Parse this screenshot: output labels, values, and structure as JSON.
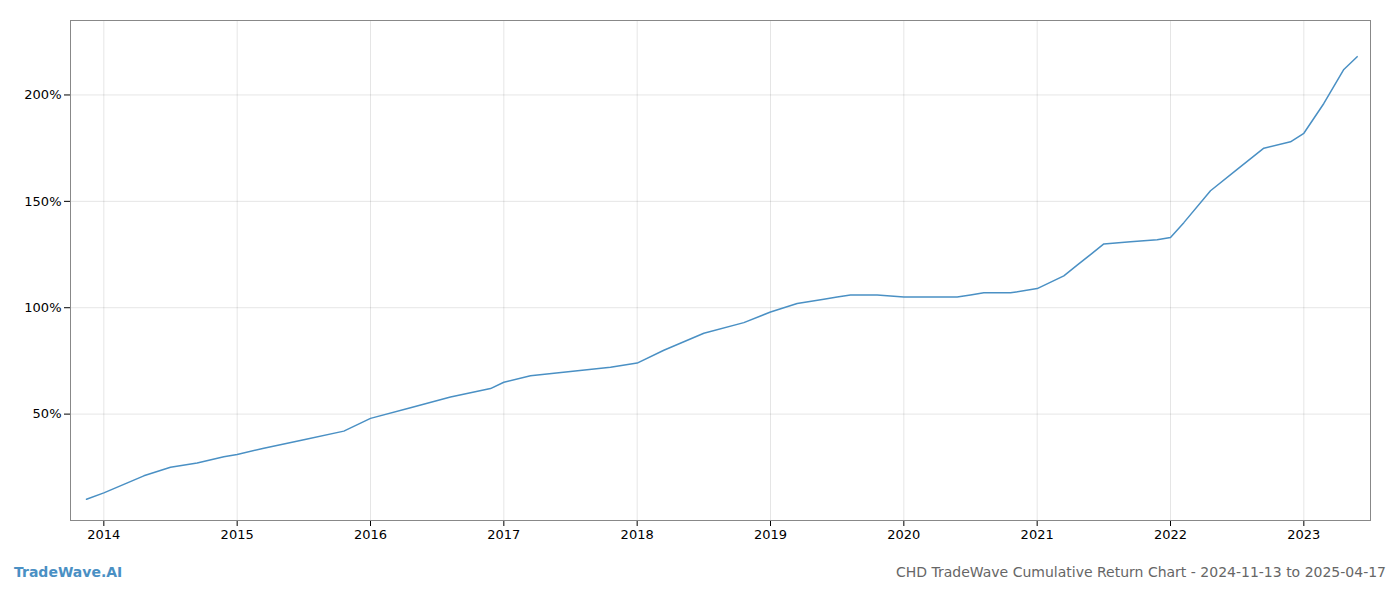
{
  "chart_data": {
    "type": "line",
    "title": "CHD TradeWave Cumulative Return Chart - 2024-11-13 to 2025-04-17",
    "annotations": [
      "TradeWave.AI"
    ],
    "color": "#4a90c4",
    "x": [
      2013.87,
      2014.0,
      2014.15,
      2014.3,
      2014.5,
      2014.7,
      2014.9,
      2015.0,
      2015.2,
      2015.5,
      2015.8,
      2016.0,
      2016.3,
      2016.6,
      2016.9,
      2017.0,
      2017.2,
      2017.5,
      2017.8,
      2018.0,
      2018.2,
      2018.5,
      2018.8,
      2019.0,
      2019.2,
      2019.4,
      2019.5,
      2019.6,
      2019.8,
      2020.0,
      2020.2,
      2020.4,
      2020.5,
      2020.6,
      2020.8,
      2021.0,
      2021.2,
      2021.3,
      2021.4,
      2021.5,
      2021.7,
      2021.9,
      2022.0,
      2022.1,
      2022.3,
      2022.5,
      2022.7,
      2022.9,
      2023.0,
      2023.15,
      2023.3,
      2023.4
    ],
    "values": [
      10,
      13,
      17,
      21,
      25,
      27,
      30,
      31,
      34,
      38,
      42,
      48,
      53,
      58,
      62,
      65,
      68,
      70,
      72,
      74,
      80,
      88,
      93,
      98,
      102,
      104,
      105,
      106,
      106,
      105,
      105,
      105,
      106,
      107,
      107,
      109,
      115,
      120,
      125,
      130,
      131,
      132,
      133,
      140,
      155,
      165,
      175,
      178,
      182,
      196,
      212,
      218
    ],
    "xlim": [
      2013.75,
      2023.5
    ],
    "xticks": [
      2014,
      2015,
      2016,
      2017,
      2018,
      2019,
      2020,
      2021,
      2022,
      2023
    ],
    "ylim": [
      0,
      235
    ],
    "yticks": [
      {
        "value": 50,
        "label": "50%"
      },
      {
        "value": 100,
        "label": "100%"
      },
      {
        "value": 150,
        "label": "150%"
      },
      {
        "value": 200,
        "label": "200%"
      }
    ],
    "grid": true
  }
}
